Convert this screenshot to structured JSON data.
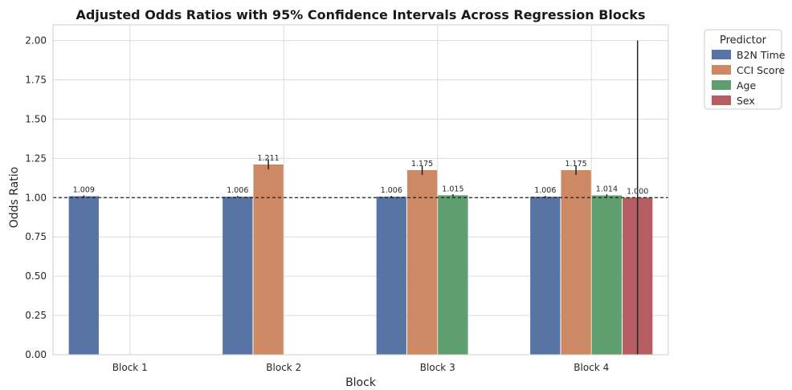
{
  "chart_data": {
    "type": "bar",
    "title": "Adjusted Odds Ratios with 95% Confidence Intervals Across Regression Blocks",
    "xlabel": "Block",
    "ylabel": "Odds Ratio",
    "categories": [
      "Block 1",
      "Block 2",
      "Block 3",
      "Block 4"
    ],
    "ylim": [
      0,
      2.1
    ],
    "yticks": [
      0.0,
      0.25,
      0.5,
      0.75,
      1.0,
      1.25,
      1.5,
      1.75,
      2.0
    ],
    "ytick_labels": [
      "0.00",
      "0.25",
      "0.50",
      "0.75",
      "1.00",
      "1.25",
      "1.50",
      "1.75",
      "2.00"
    ],
    "reference_line": 1.0,
    "grid": true,
    "legend": {
      "title": "Predictor",
      "placement": "outside-top-right"
    },
    "series": [
      {
        "name": "B2N Time",
        "color": "#5874a4",
        "values": [
          1.009,
          1.006,
          1.006,
          1.006
        ],
        "labels": [
          "1.009",
          "1.006",
          "1.006",
          "1.006"
        ],
        "ci": [
          [
            1.004,
            1.014
          ],
          [
            1.001,
            1.011
          ],
          [
            1.001,
            1.011
          ],
          [
            1.001,
            1.011
          ]
        ]
      },
      {
        "name": "CCI Score",
        "color": "#cc8963",
        "values": [
          null,
          1.211,
          1.175,
          1.175
        ],
        "labels": [
          null,
          "1.211",
          "1.175",
          "1.175"
        ],
        "ci": [
          null,
          [
            1.18,
            1.245
          ],
          [
            1.145,
            1.205
          ],
          [
            1.145,
            1.205
          ]
        ]
      },
      {
        "name": "Age",
        "color": "#5f9e6e",
        "values": [
          null,
          null,
          1.015,
          1.014
        ],
        "labels": [
          null,
          null,
          "1.015",
          "1.014"
        ],
        "ci": [
          null,
          null,
          [
            1.008,
            1.022
          ],
          [
            1.007,
            1.021
          ]
        ]
      },
      {
        "name": "Sex",
        "color": "#b55d60",
        "values": [
          null,
          null,
          null,
          1.0
        ],
        "labels": [
          null,
          null,
          null,
          "1.000"
        ],
        "ci": [
          null,
          null,
          null,
          [
            0.0,
            2.0
          ]
        ]
      }
    ]
  }
}
